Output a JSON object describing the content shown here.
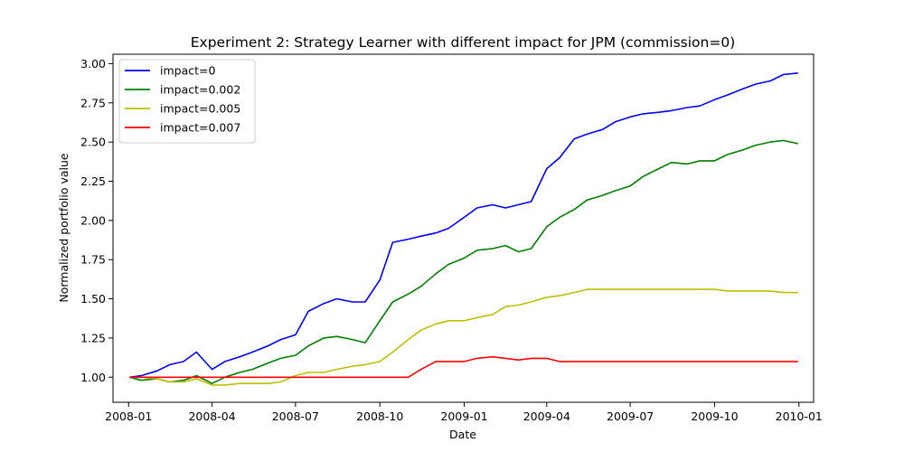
{
  "chart_data": {
    "type": "line",
    "title": "Experiment 2: Strategy Learner with different impact for JPM (commission=0)",
    "xlabel": "Date",
    "ylabel": "Normalized portfolio value",
    "xlim": [
      "2007-12-15",
      "2010-01-17"
    ],
    "ylim": [
      0.84,
      3.06
    ],
    "x_ticks": [
      "2008-01",
      "2008-04",
      "2008-07",
      "2008-10",
      "2009-01",
      "2009-04",
      "2009-07",
      "2009-10",
      "2010-01"
    ],
    "y_ticks": [
      "1.00",
      "1.25",
      "1.50",
      "1.75",
      "2.00",
      "2.25",
      "2.50",
      "2.75",
      "3.00"
    ],
    "y_tick_values": [
      1.0,
      1.25,
      1.5,
      1.75,
      2.0,
      2.25,
      2.5,
      2.75,
      3.0
    ],
    "grid": false,
    "legend_position": "top-left",
    "x": [
      "2008-01-02",
      "2008-01-15",
      "2008-02-01",
      "2008-02-15",
      "2008-03-01",
      "2008-03-15",
      "2008-04-01",
      "2008-04-15",
      "2008-05-01",
      "2008-05-15",
      "2008-06-01",
      "2008-06-15",
      "2008-07-01",
      "2008-07-15",
      "2008-08-01",
      "2008-08-15",
      "2008-09-01",
      "2008-09-15",
      "2008-10-01",
      "2008-10-15",
      "2008-11-01",
      "2008-11-15",
      "2008-12-01",
      "2008-12-15",
      "2009-01-01",
      "2009-01-15",
      "2009-02-01",
      "2009-02-15",
      "2009-03-01",
      "2009-03-15",
      "2009-04-01",
      "2009-04-15",
      "2009-05-01",
      "2009-05-15",
      "2009-06-01",
      "2009-06-15",
      "2009-07-01",
      "2009-07-15",
      "2009-08-01",
      "2009-08-15",
      "2009-09-01",
      "2009-09-15",
      "2009-10-01",
      "2009-10-15",
      "2009-11-01",
      "2009-11-15",
      "2009-12-01",
      "2009-12-15",
      "2009-12-31"
    ],
    "series": [
      {
        "name": "impact=0",
        "color": "#0000ff",
        "values": [
          1.0,
          1.01,
          1.04,
          1.08,
          1.1,
          1.16,
          1.05,
          1.1,
          1.13,
          1.16,
          1.2,
          1.24,
          1.27,
          1.42,
          1.47,
          1.5,
          1.48,
          1.48,
          1.62,
          1.86,
          1.88,
          1.9,
          1.92,
          1.95,
          2.02,
          2.08,
          2.1,
          2.08,
          2.1,
          2.12,
          2.33,
          2.4,
          2.52,
          2.55,
          2.58,
          2.63,
          2.66,
          2.68,
          2.69,
          2.7,
          2.72,
          2.73,
          2.77,
          2.8,
          2.84,
          2.87,
          2.89,
          2.93,
          2.94
        ]
      },
      {
        "name": "impact=0.002",
        "color": "#008000",
        "values": [
          1.0,
          0.98,
          0.99,
          0.97,
          0.98,
          1.01,
          0.96,
          1.0,
          1.03,
          1.05,
          1.09,
          1.12,
          1.14,
          1.2,
          1.25,
          1.26,
          1.24,
          1.22,
          1.36,
          1.48,
          1.53,
          1.58,
          1.66,
          1.72,
          1.76,
          1.81,
          1.82,
          1.84,
          1.8,
          1.82,
          1.96,
          2.02,
          2.07,
          2.13,
          2.16,
          2.19,
          2.22,
          2.28,
          2.33,
          2.37,
          2.36,
          2.38,
          2.38,
          2.42,
          2.45,
          2.48,
          2.5,
          2.51,
          2.49
        ]
      },
      {
        "name": "impact=0.005",
        "color": "#bfbf00",
        "values": [
          1.0,
          1.0,
          0.99,
          0.97,
          0.97,
          0.99,
          0.95,
          0.95,
          0.96,
          0.96,
          0.96,
          0.97,
          1.01,
          1.03,
          1.03,
          1.05,
          1.07,
          1.08,
          1.1,
          1.16,
          1.24,
          1.3,
          1.34,
          1.36,
          1.36,
          1.38,
          1.4,
          1.45,
          1.46,
          1.48,
          1.51,
          1.52,
          1.54,
          1.56,
          1.56,
          1.56,
          1.56,
          1.56,
          1.56,
          1.56,
          1.56,
          1.56,
          1.56,
          1.55,
          1.55,
          1.55,
          1.55,
          1.54,
          1.54
        ]
      },
      {
        "name": "impact=0.007",
        "color": "#ff0000",
        "values": [
          1.0,
          1.0,
          1.0,
          1.0,
          1.0,
          1.0,
          1.0,
          1.0,
          1.0,
          1.0,
          1.0,
          1.0,
          1.0,
          1.0,
          1.0,
          1.0,
          1.0,
          1.0,
          1.0,
          1.0,
          1.0,
          1.05,
          1.1,
          1.1,
          1.1,
          1.12,
          1.13,
          1.12,
          1.11,
          1.12,
          1.12,
          1.1,
          1.1,
          1.1,
          1.1,
          1.1,
          1.1,
          1.1,
          1.1,
          1.1,
          1.1,
          1.1,
          1.1,
          1.1,
          1.1,
          1.1,
          1.1,
          1.1,
          1.1
        ]
      }
    ]
  }
}
